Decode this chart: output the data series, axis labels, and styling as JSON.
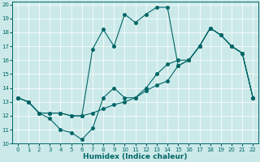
{
  "xlabel": "Humidex (Indice chaleur)",
  "ylabel": "",
  "bg_color": "#cce9e9",
  "line_color": "#006666",
  "xlim": [
    -0.5,
    22.5
  ],
  "ylim": [
    10,
    20.2
  ],
  "xticks": [
    0,
    1,
    2,
    3,
    4,
    5,
    6,
    7,
    8,
    9,
    10,
    11,
    12,
    13,
    14,
    15,
    16,
    17,
    18,
    19,
    20,
    21,
    22
  ],
  "yticks": [
    10,
    11,
    12,
    13,
    14,
    15,
    16,
    17,
    18,
    19,
    20
  ],
  "line1_x": [
    0,
    1,
    2,
    3,
    4,
    5,
    6,
    7,
    8,
    9,
    10,
    11,
    12,
    13,
    14,
    15,
    16,
    17,
    18,
    19,
    20,
    21,
    22
  ],
  "line1_y": [
    13.3,
    13.0,
    12.2,
    11.8,
    11.0,
    10.8,
    10.3,
    11.1,
    13.3,
    14.0,
    13.3,
    13.3,
    14.0,
    15.0,
    15.7,
    16.0,
    16.0,
    17.0,
    18.3,
    17.8,
    17.0,
    16.5,
    13.3
  ],
  "line2_x": [
    0,
    1,
    2,
    3,
    4,
    5,
    6,
    7,
    8,
    9,
    10,
    11,
    12,
    13,
    14,
    15,
    16,
    17,
    18,
    19,
    20,
    21,
    22
  ],
  "line2_y": [
    13.3,
    13.0,
    12.2,
    12.2,
    12.2,
    12.0,
    12.0,
    16.8,
    18.2,
    17.0,
    19.3,
    18.7,
    19.3,
    19.8,
    19.8,
    15.6,
    16.0,
    17.0,
    18.3,
    17.8,
    17.0,
    16.5,
    13.3
  ],
  "line3_x": [
    0,
    1,
    2,
    3,
    4,
    5,
    6,
    7,
    8,
    9,
    10,
    11,
    12,
    13,
    14,
    15,
    16,
    17,
    18,
    19,
    20,
    21,
    22
  ],
  "line3_y": [
    13.3,
    13.0,
    12.2,
    12.2,
    12.2,
    12.0,
    12.0,
    12.2,
    12.5,
    12.8,
    13.0,
    13.3,
    13.8,
    14.2,
    14.5,
    15.6,
    16.0,
    17.0,
    18.3,
    17.8,
    17.0,
    16.5,
    13.3
  ]
}
